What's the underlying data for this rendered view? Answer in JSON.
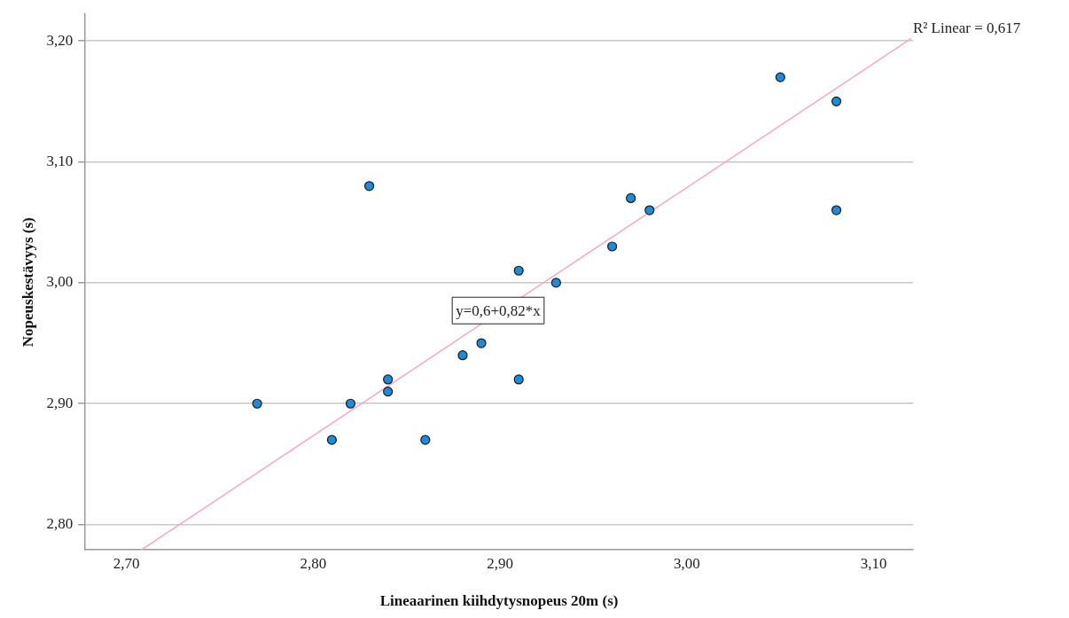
{
  "chart_data": {
    "type": "scatter",
    "xlabel": "Lineaarinen kiihdytysnopeus 20m (s)",
    "ylabel": "Nopeuskestävyys (s)",
    "xlim": [
      2.678,
      3.121
    ],
    "ylim": [
      2.779,
      3.222
    ],
    "xticks": [
      {
        "value": 2.7,
        "label": "2,70"
      },
      {
        "value": 2.8,
        "label": "2,80"
      },
      {
        "value": 2.9,
        "label": "2,90"
      },
      {
        "value": 3.0,
        "label": "3,00"
      },
      {
        "value": 3.1,
        "label": "3,10"
      }
    ],
    "yticks": [
      {
        "value": 2.8,
        "label": "2,80"
      },
      {
        "value": 2.9,
        "label": "2,90"
      },
      {
        "value": 3.0,
        "label": "3,00"
      },
      {
        "value": 3.1,
        "label": "3,10"
      },
      {
        "value": 3.2,
        "label": "3,20"
      }
    ],
    "grid": "y",
    "legend": false,
    "marker": "circle",
    "series": [
      {
        "type": "scatter",
        "color": "#1f8ad8",
        "x": [
          2.77,
          2.81,
          2.82,
          2.83,
          2.84,
          2.84,
          2.86,
          2.88,
          2.89,
          2.91,
          2.91,
          2.93,
          2.96,
          2.97,
          2.98,
          3.05,
          3.08,
          3.08
        ],
        "values": [
          2.9,
          2.87,
          2.9,
          3.08,
          2.92,
          2.91,
          2.87,
          2.94,
          2.95,
          3.01,
          2.92,
          3.0,
          3.03,
          3.07,
          3.06,
          3.17,
          3.15,
          3.06
        ]
      },
      {
        "type": "line",
        "color": "#f7a6c4",
        "marker": "none",
        "x": [
          2.708,
          3.12
        ],
        "values": [
          2.779,
          3.202
        ]
      }
    ],
    "annotations": [
      {
        "text": "y=0,6+0,82*x",
        "x": 2.899,
        "y": 2.977
      },
      "R² Linear = 0,617"
    ]
  }
}
